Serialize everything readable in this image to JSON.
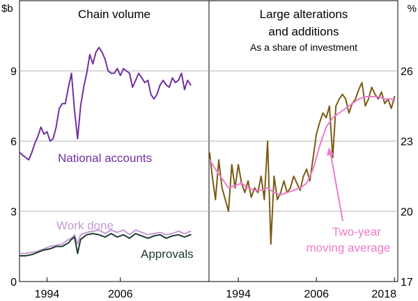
{
  "chart_data": [
    {
      "type": "line",
      "panel": "left",
      "title": "Chain volume",
      "ylabel": "$b",
      "ylim": [
        0,
        12
      ],
      "yticks": [
        0,
        3,
        6,
        9
      ],
      "xlim": [
        1989.5,
        2020.5
      ],
      "xticks": [
        1994,
        2006
      ],
      "series": [
        {
          "name": "National accounts",
          "color": "#7030a0",
          "x": [
            1989.6,
            1990,
            1990.5,
            1991,
            1991.5,
            1992,
            1992.5,
            1993,
            1993.5,
            1994,
            1994.5,
            1995,
            1995.5,
            1996,
            1996.5,
            1997,
            1997.5,
            1998,
            1998.5,
            1999,
            1999.5,
            2000,
            2000.5,
            2001,
            2001.5,
            2002,
            2002.5,
            2003,
            2003.5,
            2004,
            2004.5,
            2005,
            2005.5,
            2006,
            2006.5,
            2007,
            2007.5,
            2008,
            2008.5,
            2009,
            2009.5,
            2010,
            2010.5,
            2011,
            2011.5,
            2012,
            2012.5,
            2013,
            2013.5,
            2014,
            2014.5,
            2015,
            2015.5,
            2016,
            2016.5,
            2017,
            2017.5
          ],
          "values": [
            5.5,
            5.4,
            5.3,
            5.2,
            5.5,
            5.9,
            6.2,
            6.6,
            6.3,
            6.4,
            6.0,
            6.1,
            6.6,
            7.4,
            7.6,
            7.6,
            8.3,
            8.9,
            7.3,
            6.1,
            7.5,
            8.3,
            8.9,
            9.7,
            9.3,
            9.8,
            10.0,
            9.8,
            9.5,
            9.0,
            8.9,
            8.9,
            9.1,
            8.8,
            9.1,
            9.0,
            8.9,
            8.3,
            8.6,
            8.9,
            8.7,
            8.5,
            8.6,
            8.0,
            7.8,
            8.0,
            8.4,
            8.6,
            8.4,
            8.3,
            8.7,
            8.5,
            8.6,
            8.9,
            8.2,
            8.6,
            8.4
          ]
        },
        {
          "name": "Work done",
          "color": "#c39bd3",
          "x": [
            1989.6,
            1990.5,
            1991.5,
            1992.5,
            1993.5,
            1994.5,
            1995.5,
            1996.5,
            1997.5,
            1998,
            1998.5,
            1999,
            1999.5,
            2000.5,
            2001.5,
            2002.5,
            2003.5,
            2004.5,
            2005.5,
            2006.5,
            2007.5,
            2008.5,
            2009.5,
            2010.5,
            2011.5,
            2012.5,
            2013.5,
            2014.5,
            2015.5,
            2016.5,
            2017.5
          ],
          "values": [
            1.2,
            1.2,
            1.25,
            1.3,
            1.4,
            1.5,
            1.55,
            1.6,
            1.8,
            1.85,
            2.0,
            1.6,
            2.0,
            2.1,
            2.15,
            2.2,
            2.05,
            2.2,
            2.1,
            2.2,
            2.0,
            2.2,
            2.1,
            2.0,
            2.05,
            2.1,
            2.0,
            2.05,
            2.15,
            2.05,
            2.15
          ]
        },
        {
          "name": "Approvals",
          "color": "#1c3a2f",
          "x": [
            1989.6,
            1990.5,
            1991.5,
            1992.5,
            1993.5,
            1994.5,
            1995.5,
            1996.5,
            1997.5,
            1998,
            1998.5,
            1999,
            1999.5,
            2000.5,
            2001.5,
            2002.5,
            2003.5,
            2004.5,
            2005.5,
            2006.5,
            2007.5,
            2008.5,
            2009.5,
            2010.5,
            2011.5,
            2012.5,
            2013.5,
            2014.5,
            2015.5,
            2016.5,
            2017.5
          ],
          "values": [
            1.1,
            1.1,
            1.15,
            1.25,
            1.35,
            1.4,
            1.5,
            1.5,
            1.65,
            1.8,
            1.9,
            1.2,
            1.8,
            2.0,
            2.05,
            2.0,
            1.9,
            2.05,
            1.9,
            2.0,
            1.85,
            2.05,
            1.95,
            1.85,
            1.95,
            2.0,
            1.85,
            1.95,
            2.0,
            1.9,
            2.0
          ]
        }
      ],
      "annotations": [
        "National accounts",
        "Work done",
        "Approvals"
      ]
    },
    {
      "type": "line",
      "panel": "right",
      "title": "Large alterations",
      "title_line2": "and additions",
      "subtitle": "As a share of investment",
      "ylabel": "%",
      "ylim": [
        17,
        29
      ],
      "yticks": [
        17,
        20,
        23,
        26
      ],
      "xlim": [
        1989.5,
        2018.5
      ],
      "xticks": [
        1994,
        2006,
        2018
      ],
      "series": [
        {
          "name": "Large alterations and additions",
          "color": "#7b5a14",
          "x": [
            1989.6,
            1990,
            1990.5,
            1991,
            1991.5,
            1992,
            1992.5,
            1993,
            1993.5,
            1994,
            1994.5,
            1995,
            1995.5,
            1996,
            1996.5,
            1997,
            1997.5,
            1998,
            1998.5,
            1999,
            1999.5,
            2000,
            2000.5,
            2001,
            2001.5,
            2002,
            2002.5,
            2003,
            2003.5,
            2004,
            2004.5,
            2005,
            2005.5,
            2006,
            2006.5,
            2007,
            2007.5,
            2008,
            2008.5,
            2009,
            2009.5,
            2010,
            2010.5,
            2011,
            2011.5,
            2012,
            2012.5,
            2013,
            2013.5,
            2014,
            2014.5,
            2015,
            2015.5,
            2016,
            2016.5,
            2017,
            2017.5,
            2018
          ],
          "values": [
            22.5,
            21.5,
            20.5,
            22.2,
            21.0,
            20.5,
            20.0,
            22.0,
            21.0,
            22.0,
            21.2,
            20.8,
            21.3,
            20.6,
            21.0,
            20.8,
            21.5,
            20.5,
            23.0,
            18.6,
            21.5,
            20.5,
            20.8,
            21.3,
            20.8,
            21.0,
            21.5,
            21.2,
            20.9,
            21.5,
            21.8,
            21.3,
            22.3,
            23.3,
            23.8,
            24.2,
            24.0,
            24.5,
            22.3,
            24.5,
            24.8,
            25.0,
            24.8,
            24.2,
            24.6,
            24.8,
            25.2,
            25.5,
            24.5,
            24.8,
            25.3,
            25.0,
            24.8,
            25.1,
            24.6,
            24.8,
            24.4,
            24.9
          ]
        },
        {
          "name": "Two-year moving average",
          "color": "#f07acb",
          "x": [
            1989.6,
            1990.5,
            1991.5,
            1992.5,
            1993.5,
            1994.5,
            1995.5,
            1996.5,
            1997.5,
            1998.5,
            1999.5,
            2000.5,
            2001.5,
            2002.5,
            2003.5,
            2004.5,
            2005.5,
            2006.5,
            2007.5,
            2008.5,
            2009.5,
            2010.5,
            2011.5,
            2012.5,
            2013.5,
            2014.5,
            2015.5,
            2016.5,
            2017.5,
            2018
          ],
          "values": [
            22.2,
            21.8,
            21.4,
            21.0,
            21.1,
            21.2,
            21.0,
            20.9,
            20.9,
            21.0,
            20.8,
            20.7,
            20.8,
            20.9,
            21.0,
            21.2,
            21.8,
            22.8,
            23.6,
            24.0,
            24.2,
            24.4,
            24.6,
            24.8,
            24.9,
            24.9,
            24.9,
            24.8,
            24.8,
            24.7
          ]
        }
      ],
      "annotations": [
        "Two-year",
        "moving average"
      ]
    }
  ]
}
